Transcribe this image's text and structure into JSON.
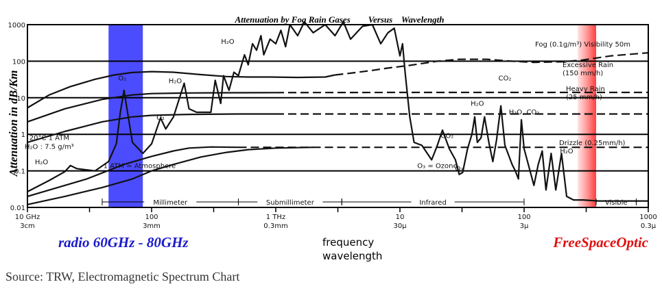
{
  "chart_data": {
    "type": "line",
    "title": "Attenuation by Fog Rain Gases        Versus    Wavelength",
    "ylabel": "Attenuation in dB/Km",
    "xscale": "log",
    "yscale": "log",
    "xlim": [
      10,
      1000000
    ],
    "ylim": [
      0.01,
      1000
    ],
    "grid": true,
    "x_ticks": [
      {
        "freq": "10 GHz",
        "wave": "3cm"
      },
      {
        "freq": "",
        "wave": ""
      },
      {
        "freq": "100",
        "wave": "3mm"
      },
      {
        "freq": "",
        "wave": ""
      },
      {
        "freq": "1 THz",
        "wave": "0.3mm"
      },
      {
        "freq": "",
        "wave": ""
      },
      {
        "freq": "10",
        "wave": "30μ"
      },
      {
        "freq": "",
        "wave": ""
      },
      {
        "freq": "100",
        "wave": "3μ"
      },
      {
        "freq": "",
        "wave": ""
      },
      {
        "freq": "1000",
        "wave": "0.3μ"
      }
    ],
    "y_ticks": [
      "1000",
      "100",
      "10",
      "1",
      "0.1",
      "0.01"
    ],
    "series": [
      {
        "name": "Fog (0.1g/m³)  Visibility 50m",
        "points": [
          [
            10,
            5.3
          ],
          [
            15,
            12
          ],
          [
            22,
            20
          ],
          [
            35,
            32
          ],
          [
            50,
            42
          ],
          [
            70,
            49
          ],
          [
            100,
            52
          ],
          [
            150,
            50
          ],
          [
            250,
            43
          ],
          [
            400,
            38
          ],
          [
            600,
            37
          ],
          [
            900,
            37
          ],
          [
            1500,
            36
          ],
          [
            2500,
            37
          ],
          [
            3000,
            42
          ],
          [
            4000,
            47
          ],
          [
            6000,
            56
          ],
          [
            8000,
            65
          ],
          [
            12000,
            77
          ],
          [
            20000,
            100
          ],
          [
            30000,
            113
          ],
          [
            50000,
            113
          ],
          [
            80000,
            100
          ],
          [
            120000,
            93
          ],
          [
            200000,
            96
          ],
          [
            300000,
            108
          ],
          [
            500000,
            140
          ],
          [
            1000000,
            170
          ]
        ]
      },
      {
        "name": "Excessive Rain (150 mm/h)",
        "points": [
          [
            10,
            2.2
          ],
          [
            20,
            5
          ],
          [
            40,
            9
          ],
          [
            70,
            12
          ],
          [
            100,
            13
          ],
          [
            200,
            13.5
          ],
          [
            400,
            13.7
          ],
          [
            1000,
            13.8
          ],
          [
            10000,
            14
          ],
          [
            1000000,
            14
          ]
        ]
      },
      {
        "name": "Heavy Rain (25 mm/h)",
        "points": [
          [
            10,
            0.6
          ],
          [
            20,
            1.2
          ],
          [
            40,
            2.2
          ],
          [
            70,
            3
          ],
          [
            100,
            3.3
          ],
          [
            200,
            3.5
          ],
          [
            500,
            3.6
          ],
          [
            1000,
            3.6
          ],
          [
            10000,
            3.6
          ],
          [
            1000000,
            3.6
          ]
        ]
      },
      {
        "name": "Drizzle (0.25mm/h)",
        "points": [
          [
            10,
            0.02
          ],
          [
            30,
            0.06
          ],
          [
            60,
            0.15
          ],
          [
            100,
            0.25
          ],
          [
            150,
            0.35
          ],
          [
            200,
            0.42
          ],
          [
            300,
            0.45
          ],
          [
            500,
            0.44
          ],
          [
            1000,
            0.44
          ],
          [
            10000,
            0.44
          ],
          [
            1000000,
            0.44
          ]
        ]
      },
      {
        "name": "20°C 1 ATM  H₂O : 7.5 g/m³",
        "points": [
          [
            10,
            0.027
          ],
          [
            15,
            0.055
          ],
          [
            20,
            0.095
          ],
          [
            22.2,
            0.14
          ],
          [
            25,
            0.115
          ],
          [
            35,
            0.1
          ],
          [
            45,
            0.18
          ],
          [
            52,
            0.55
          ],
          [
            56,
            4
          ],
          [
            60,
            16
          ],
          [
            64,
            4
          ],
          [
            70,
            0.6
          ],
          [
            85,
            0.3
          ],
          [
            100,
            0.55
          ],
          [
            118,
            2.8
          ],
          [
            130,
            1.4
          ],
          [
            150,
            3
          ],
          [
            183,
            25
          ],
          [
            200,
            5
          ],
          [
            230,
            4
          ],
          [
            300,
            4
          ],
          [
            325,
            30
          ],
          [
            360,
            7
          ],
          [
            380,
            40
          ],
          [
            420,
            16
          ],
          [
            460,
            50
          ],
          [
            500,
            40
          ],
          [
            560,
            150
          ],
          [
            600,
            80
          ],
          [
            650,
            300
          ],
          [
            700,
            200
          ],
          [
            760,
            500
          ],
          [
            800,
            150
          ],
          [
            900,
            400
          ],
          [
            1000,
            300
          ],
          [
            1100,
            700
          ],
          [
            1200,
            250
          ],
          [
            1300,
            1000
          ],
          [
            1500,
            500
          ],
          [
            1700,
            1200
          ],
          [
            2000,
            600
          ],
          [
            2500,
            1000
          ],
          [
            3000,
            500
          ],
          [
            3500,
            1200
          ],
          [
            4000,
            400
          ],
          [
            5000,
            900
          ],
          [
            6000,
            1000
          ],
          [
            7000,
            300
          ],
          [
            8000,
            600
          ],
          [
            9000,
            800
          ],
          [
            10000,
            140
          ],
          [
            10500,
            300
          ],
          [
            11000,
            50
          ],
          [
            12000,
            3
          ],
          [
            13000,
            0.6
          ],
          [
            15000,
            0.5
          ],
          [
            18000,
            0.2
          ],
          [
            20000,
            0.5
          ],
          [
            22000,
            1.3
          ],
          [
            25000,
            0.4
          ],
          [
            28000,
            0.2
          ],
          [
            30000,
            0.08
          ],
          [
            32000,
            0.09
          ],
          [
            35000,
            0.4
          ],
          [
            38000,
            1
          ],
          [
            40000,
            3
          ],
          [
            42000,
            0.6
          ],
          [
            45000,
            0.8
          ],
          [
            48000,
            3
          ],
          [
            52000,
            0.6
          ],
          [
            56000,
            0.18
          ],
          [
            60000,
            0.7
          ],
          [
            65000,
            6
          ],
          [
            70000,
            0.5
          ],
          [
            80000,
            0.15
          ],
          [
            85000,
            0.1
          ],
          [
            90000,
            0.06
          ],
          [
            95000,
            2.5
          ],
          [
            100000,
            0.4
          ],
          [
            110000,
            0.12
          ],
          [
            120000,
            0.04
          ],
          [
            130000,
            0.15
          ],
          [
            140000,
            0.35
          ],
          [
            150000,
            0.03
          ],
          [
            165000,
            0.3
          ],
          [
            180000,
            0.03
          ],
          [
            200000,
            0.3
          ],
          [
            220000,
            0.02
          ],
          [
            250000,
            0.016
          ],
          [
            300000,
            0.016
          ],
          [
            400000,
            0.015
          ],
          [
            600000,
            0.015
          ],
          [
            1000000,
            0.015
          ]
        ]
      },
      {
        "name": "1 ATM = Atmosphere",
        "points": [
          [
            10,
            0.012
          ],
          [
            20,
            0.02
          ],
          [
            40,
            0.035
          ],
          [
            70,
            0.06
          ],
          [
            100,
            0.1
          ],
          [
            150,
            0.15
          ],
          [
            250,
            0.24
          ],
          [
            400,
            0.32
          ],
          [
            600,
            0.38
          ],
          [
            1000,
            0.42
          ],
          [
            2000,
            0.44
          ]
        ]
      }
    ],
    "annotations": [
      {
        "text": "O₂",
        "x": 58,
        "y": 30
      },
      {
        "text": "O₂",
        "x": 118,
        "y": 2.5
      },
      {
        "text": "H₂O",
        "x": 155,
        "y": 25
      },
      {
        "text": "H₂O",
        "x": 410,
        "y": 300
      },
      {
        "text": "H₂O",
        "x": 13,
        "y": 0.15
      },
      {
        "text": "CO₂",
        "x": 24000,
        "y": 0.8
      },
      {
        "text": "O₃",
        "x": 30000,
        "y": 0.1
      },
      {
        "text": "H₂O",
        "x": 42000,
        "y": 6
      },
      {
        "text": "CO₂",
        "x": 70000,
        "y": 30
      },
      {
        "text": "H₂O, CO₂",
        "x": 100000,
        "y": 3.5
      },
      {
        "text": "H₂O",
        "x": 220000,
        "y": 0.3
      },
      {
        "text": "20°C 1 ATM",
        "x": 15,
        "y": 0.7
      },
      {
        "text": "H₂O : 7.5 g/m³",
        "x": 15,
        "y": 0.4
      },
      {
        "text": "1 ATM = Atmosphere",
        "x": 80,
        "y": 0.12
      },
      {
        "text": "O₃ = Ozone",
        "x": 20000,
        "y": 0.12
      }
    ],
    "bands": [
      {
        "label": "Millimeter",
        "from": 40,
        "to": 500
      },
      {
        "label": "Submillimeter",
        "from": 500,
        "to": 3400
      },
      {
        "label": "Infrared",
        "from": 3400,
        "to": 100000
      },
      {
        "label": "Visible",
        "from": 380000,
        "to": 800000
      }
    ],
    "highlights": [
      {
        "label": "radio 60GHz - 80GHz",
        "from": 45,
        "to": 85,
        "color": "#1010ff"
      },
      {
        "label": "FreeSpaceOptic",
        "from": 270000,
        "to": 380000,
        "color": "#ff1a1a"
      }
    ]
  },
  "overlay": {
    "radio_label": "radio 60GHz - 80GHz",
    "fso_label": "FreeSpaceOptic",
    "frequency_label": "frequency",
    "wavelength_label": "wavelength",
    "source": "Source: TRW, Electromagnetic Spectrum Chart"
  },
  "colors": {
    "radio": "#1a1aff",
    "fso": "#ff1a1a",
    "radio_text": "#1a1acc",
    "fso_text": "#e01010"
  }
}
